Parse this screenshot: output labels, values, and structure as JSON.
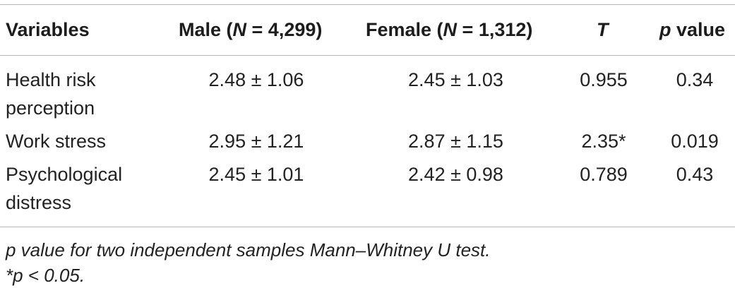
{
  "table": {
    "headers": {
      "variables": "Variables",
      "male_prefix": "Male (",
      "male_n": "N",
      "male_suffix": " = 4,299)",
      "female_prefix": "Female (",
      "female_n": "N",
      "female_suffix": " = 1,312)",
      "t": "T",
      "p_italic": "p",
      "p_rest": " value"
    },
    "rows": [
      {
        "variable_line1": "Health risk",
        "variable_line2": "perception",
        "male": "2.48 ± 1.06",
        "female": "2.45 ± 1.03",
        "t": "0.955",
        "p": "0.34"
      },
      {
        "variable_line1": "Work stress",
        "variable_line2": "",
        "male": "2.95 ± 1.21",
        "female": "2.87 ± 1.15",
        "t": "2.35*",
        "p": "0.019"
      },
      {
        "variable_line1": "Psychological",
        "variable_line2": "distress",
        "male": "2.45 ± 1.01",
        "female": "2.42 ± 0.98",
        "t": "0.789",
        "p": "0.43"
      }
    ]
  },
  "notes": {
    "line1": "p value for two independent samples Mann–Whitney U test.",
    "line2": "*p < 0.05."
  }
}
